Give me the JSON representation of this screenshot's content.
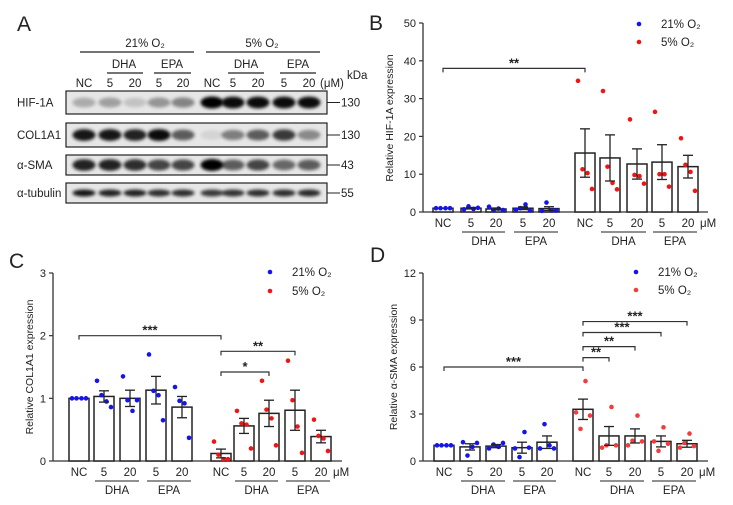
{
  "panel_labels": {
    "A": "A",
    "B": "B",
    "C": "C",
    "D": "D"
  },
  "blot": {
    "conditions": [
      {
        "label": "21% O₂"
      },
      {
        "label": "5% O₂"
      }
    ],
    "treatments": [
      {
        "label": "DHA"
      },
      {
        "label": "EPA"
      },
      {
        "label": "DHA"
      },
      {
        "label": "EPA"
      }
    ],
    "lanes": [
      "NC",
      "5",
      "20",
      "5",
      "20",
      "NC",
      "5",
      "20",
      "5",
      "20"
    ],
    "unit": "(μM)",
    "kda_label": "kDa",
    "rows": [
      {
        "protein": "HIF-1A",
        "kda": "130",
        "band_intensity": [
          0.25,
          0.3,
          0.15,
          0.35,
          0.42,
          1,
          0.95,
          0.95,
          0.95,
          0.95
        ]
      },
      {
        "protein": "COL1A1",
        "kda": "130",
        "band_intensity": [
          0.9,
          0.9,
          0.85,
          0.95,
          0.6,
          0.08,
          0.45,
          0.6,
          0.75,
          0.4
        ]
      },
      {
        "protein": "α-SMA",
        "kda": "43",
        "band_intensity": [
          0.85,
          0.85,
          0.8,
          0.7,
          0.7,
          1,
          0.6,
          0.7,
          0.55,
          0.6
        ]
      },
      {
        "protein": "α-tubulin",
        "kda": "55",
        "band_intensity": [
          0.9,
          0.85,
          0.85,
          0.8,
          0.8,
          0.75,
          0.78,
          0.8,
          0.8,
          0.82
        ]
      }
    ]
  },
  "chart_data": [
    {
      "id": "B",
      "type": "bar",
      "ylabel": "Relative HIF-1A expression",
      "ylim": [
        0,
        50
      ],
      "yticks": [
        0,
        10,
        20,
        30,
        40,
        50
      ],
      "legend": [
        {
          "label": "21% O₂",
          "color": "#1414f0"
        },
        {
          "label": "5% O₂",
          "color": "#f01414"
        }
      ],
      "legend_position": "top-right",
      "x_unit": "μM",
      "bars": [
        {
          "label": "NC",
          "series": 0,
          "mean": 1.0,
          "sem": 0.0,
          "points": [
            1,
            1,
            1,
            1
          ]
        },
        {
          "label": "5",
          "series": 0,
          "mean": 1.0,
          "sem": 0.2,
          "points": [
            0.7,
            1.5,
            0.8,
            1.1
          ]
        },
        {
          "label": "20",
          "series": 0,
          "mean": 0.8,
          "sem": 0.25,
          "points": [
            1.4,
            0.4,
            0.9,
            0.5
          ]
        },
        {
          "label": "5",
          "series": 0,
          "mean": 1.0,
          "sem": 0.35,
          "points": [
            0.6,
            1.0,
            2.0,
            0.4
          ]
        },
        {
          "label": "20",
          "series": 0,
          "mean": 0.9,
          "sem": 0.5,
          "points": [
            0.3,
            2.5,
            0.4,
            0.4
          ]
        },
        {
          "label": "NC",
          "series": 1,
          "mean": 15.6,
          "sem": 6.4,
          "points": [
            34.7,
            11.3,
            10.3,
            6.1
          ]
        },
        {
          "label": "5",
          "series": 1,
          "mean": 14.3,
          "sem": 6.1,
          "points": [
            32.0,
            12.0,
            7.7,
            6.0
          ]
        },
        {
          "label": "20",
          "series": 1,
          "mean": 12.7,
          "sem": 4.0,
          "points": [
            24.5,
            9.8,
            9.5,
            7.5
          ]
        },
        {
          "label": "5",
          "series": 1,
          "mean": 13.2,
          "sem": 4.6,
          "points": [
            26.5,
            10.0,
            10.0,
            6.7
          ]
        },
        {
          "label": "20",
          "series": 1,
          "mean": 12.0,
          "sem": 3.0,
          "points": [
            19.5,
            12.5,
            10.6,
            5.6
          ]
        }
      ],
      "groups": [
        {
          "label": "DHA",
          "from": 1,
          "to": 2
        },
        {
          "label": "EPA",
          "from": 3,
          "to": 4
        },
        {
          "label": "DHA",
          "from": 6,
          "to": 7
        },
        {
          "label": "EPA",
          "from": 8,
          "to": 9
        }
      ],
      "significance": [
        {
          "from": 0,
          "to": 5,
          "y": 38,
          "label": "**"
        }
      ]
    },
    {
      "id": "C",
      "type": "bar",
      "ylabel": "Relative COL1A1 expression",
      "ylim": [
        0,
        3
      ],
      "yticks": [
        0,
        1,
        2,
        3
      ],
      "legend": [
        {
          "label": "21% O₂",
          "color": "#1414f0"
        },
        {
          "label": "5% O₂",
          "color": "#f01414"
        }
      ],
      "legend_position": "top-right",
      "x_unit": "μM",
      "bars": [
        {
          "label": "NC",
          "series": 0,
          "mean": 1.0,
          "sem": 0.0,
          "points": [
            1,
            1,
            1,
            1
          ]
        },
        {
          "label": "5",
          "series": 0,
          "mean": 1.03,
          "sem": 0.09,
          "points": [
            1.28,
            1.05,
            0.95,
            0.86
          ]
        },
        {
          "label": "20",
          "series": 0,
          "mean": 1.0,
          "sem": 0.13,
          "points": [
            1.35,
            0.97,
            0.8,
            0.97
          ]
        },
        {
          "label": "5",
          "series": 0,
          "mean": 1.13,
          "sem": 0.22,
          "points": [
            1.7,
            1.12,
            1.05,
            0.65
          ]
        },
        {
          "label": "20",
          "series": 0,
          "mean": 0.86,
          "sem": 0.17,
          "points": [
            1.18,
            0.96,
            0.92,
            0.37
          ]
        },
        {
          "label": "NC",
          "series": 1,
          "mean": 0.12,
          "sem": 0.07,
          "points": [
            0.31,
            0.1,
            0.03,
            0.03
          ]
        },
        {
          "label": "5",
          "series": 1,
          "mean": 0.56,
          "sem": 0.12,
          "points": [
            0.8,
            0.6,
            0.58,
            0.2
          ]
        },
        {
          "label": "20",
          "series": 1,
          "mean": 0.76,
          "sem": 0.21,
          "points": [
            1.28,
            0.82,
            0.68,
            0.25
          ]
        },
        {
          "label": "5",
          "series": 1,
          "mean": 0.81,
          "sem": 0.32,
          "points": [
            1.6,
            0.97,
            0.55,
            0.13
          ]
        },
        {
          "label": "20",
          "series": 1,
          "mean": 0.39,
          "sem": 0.1,
          "points": [
            0.66,
            0.4,
            0.36,
            0.16
          ]
        }
      ],
      "groups": [
        {
          "label": "DHA",
          "from": 1,
          "to": 2
        },
        {
          "label": "EPA",
          "from": 3,
          "to": 4
        },
        {
          "label": "DHA",
          "from": 6,
          "to": 7
        },
        {
          "label": "EPA",
          "from": 8,
          "to": 9
        }
      ],
      "significance": [
        {
          "from": 0,
          "to": 5,
          "y": 2.0,
          "label": "***"
        },
        {
          "from": 5,
          "to": 8,
          "y": 1.75,
          "label": "**"
        },
        {
          "from": 5,
          "to": 7,
          "y": 1.42,
          "label": "*"
        }
      ]
    },
    {
      "id": "D",
      "type": "bar",
      "ylabel": "Relative α-SMA expression",
      "ylim": [
        0,
        12
      ],
      "yticks": [
        0,
        3,
        6,
        9,
        12
      ],
      "legend": [
        {
          "label": "21% O₂",
          "color": "#1414f0"
        },
        {
          "label": "5% O₂",
          "color": "#f53c3c"
        }
      ],
      "legend_position": "top-right",
      "x_unit": "μM",
      "bars": [
        {
          "label": "NC",
          "series": 0,
          "mean": 1.0,
          "sem": 0.0,
          "points": [
            1,
            1,
            1,
            1
          ]
        },
        {
          "label": "5",
          "series": 0,
          "mean": 0.9,
          "sem": 0.2,
          "points": [
            1.2,
            0.35,
            0.9,
            1.15
          ]
        },
        {
          "label": "20",
          "series": 0,
          "mean": 0.95,
          "sem": 0.1,
          "points": [
            0.8,
            1.05,
            0.9,
            1.15
          ]
        },
        {
          "label": "5",
          "series": 0,
          "mean": 0.85,
          "sem": 0.35,
          "points": [
            0.8,
            0.25,
            1.85,
            0.85
          ]
        },
        {
          "label": "20",
          "series": 0,
          "mean": 1.2,
          "sem": 0.4,
          "points": [
            0.8,
            2.35,
            1.0,
            0.8
          ]
        },
        {
          "label": "NC",
          "series": 1,
          "mean": 3.3,
          "sem": 0.65,
          "points": [
            3.1,
            2.05,
            5.1,
            2.9
          ]
        },
        {
          "label": "5",
          "series": 1,
          "mean": 1.6,
          "sem": 0.6,
          "points": [
            0.85,
            1.0,
            3.45,
            1.0
          ]
        },
        {
          "label": "20",
          "series": 1,
          "mean": 1.6,
          "sem": 0.45,
          "points": [
            1.0,
            1.3,
            2.9,
            1.25
          ]
        },
        {
          "label": "5",
          "series": 1,
          "mean": 1.25,
          "sem": 0.35,
          "points": [
            1.25,
            0.65,
            2.15,
            1.1
          ]
        },
        {
          "label": "20",
          "series": 1,
          "mean": 1.1,
          "sem": 0.22,
          "points": [
            0.85,
            1.15,
            1.75,
            0.95
          ]
        }
      ],
      "groups": [
        {
          "label": "DHA",
          "from": 1,
          "to": 2
        },
        {
          "label": "EPA",
          "from": 3,
          "to": 4
        },
        {
          "label": "DHA",
          "from": 6,
          "to": 7
        },
        {
          "label": "EPA",
          "from": 8,
          "to": 9
        }
      ],
      "significance": [
        {
          "from": 0,
          "to": 5,
          "y": 6.0,
          "label": "***"
        },
        {
          "from": 5,
          "to": 6,
          "y": 6.6,
          "label": "**"
        },
        {
          "from": 5,
          "to": 7,
          "y": 7.3,
          "label": "**"
        },
        {
          "from": 5,
          "to": 8,
          "y": 8.2,
          "label": "***"
        },
        {
          "from": 5,
          "to": 9,
          "y": 8.9,
          "label": "***"
        }
      ]
    }
  ]
}
